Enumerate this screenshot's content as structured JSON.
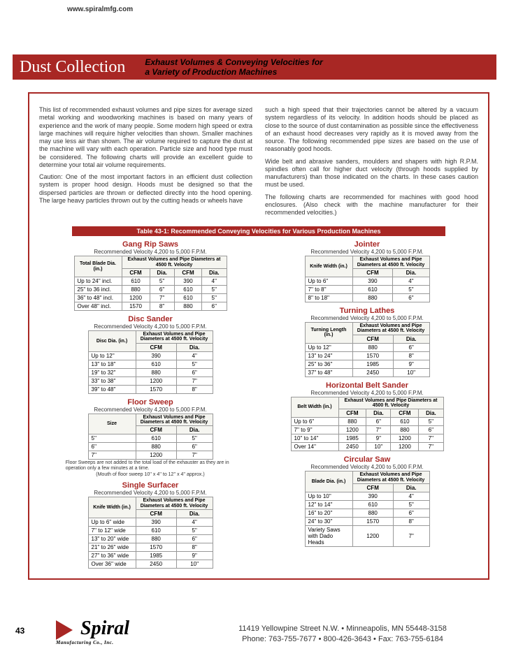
{
  "url": "www.spiralmfg.com",
  "title_main": "Dust Collection",
  "title_sub": "Exhaust Volumes & Conveying Velocities for\na Variety of Production Machines",
  "intro_left": [
    "This list of recommended exhaust volumes and pipe sizes for average sized metal working and woodworking machines is based on many years of experience and the work of many people. Some modern high speed or extra large machines will require higher velocities than shown. Smaller machines may use less air than shown. The air volume required to capture the dust at the machine will vary with each operation. Particle size and hood type must be considered. The following charts will provide an excellent guide to determine your total air volume requirements.",
    "Caution: One of the most important factors in an efficient dust collection system is proper hood design. Hoods must be designed so that the dispersed particles are thrown or deflected directly into the hood opening. The large heavy particles thrown out by the cutting heads or wheels have"
  ],
  "intro_right": [
    "such a high speed that their trajectories cannot be altered by a vacuum system regardless of its velocity. In addition hoods should be placed as close to the source of dust contamination as possible since the effectiveness of an exhaust hood decreases very rapidly as it is moved away from the source. The following recommended pipe sizes are based on the use of reasonably good hoods.",
    "Wide belt and abrasive sanders, moulders and shapers with high R.P.M. spindles often call for higher duct velocity (through hoods supplied by manufacturers) than those indicated on the charts. In these cases caution must be used.",
    "The following charts are recommended for machines with good hood enclosures. (Also check with the machine manufacturer for their recommended velocities.)"
  ],
  "table_title": "Table 43-1: Recommended Conveying Velocities for Various Production Machines",
  "vel_label": "Recommended Velocity 4,200 to 5,000 F.P.M.",
  "exh_hdr": "Exhaust Volumes and Pipe Diameters at 4500 ft. Velocity",
  "hdr_cfm": "CFM",
  "hdr_dia": "Dia.",
  "gang_rip": {
    "name": "Gang Rip Saws",
    "keyhdr": "Total Blade Dia. (in.)",
    "rows": [
      [
        "Up to 24'' incl.",
        "610",
        "5''",
        "390",
        "4''"
      ],
      [
        "25'' to 36 incl.",
        "880",
        "6''",
        "610",
        "5''"
      ],
      [
        "36'' to 48'' incl.",
        "1200",
        "7''",
        "610",
        "5''"
      ],
      [
        "Over 48'' incl.",
        "1570",
        "8''",
        "880",
        "6''"
      ]
    ]
  },
  "disc_sander": {
    "name": "Disc Sander",
    "keyhdr": "Disc Dia. (in.)",
    "rows": [
      [
        "Up to 12''",
        "390",
        "4''"
      ],
      [
        "13'' to 18''",
        "610",
        "5''"
      ],
      [
        "19'' to 32''",
        "880",
        "6''"
      ],
      [
        "33'' to 38''",
        "1200",
        "7''"
      ],
      [
        "39'' to 48''",
        "1570",
        "8''"
      ]
    ]
  },
  "floor_sweep": {
    "name": "Floor Sweep",
    "keyhdr": "Size",
    "rows": [
      [
        "5''",
        "610",
        "5''"
      ],
      [
        "6''",
        "880",
        "6''"
      ],
      [
        "7''",
        "1200",
        "7''"
      ]
    ],
    "note": "Floor Sweeps are not added to the total load of the exhauster as they are in operation only a few minutes at a time.",
    "note2": "(Mouth of floor sweep 10'' x 4'' to 12'' x 4'' approx.)"
  },
  "single_surfacer": {
    "name": "Single Surfacer",
    "keyhdr": "Knife Width (in.)",
    "rows": [
      [
        "Up to 6'' wide",
        "390",
        "4''"
      ],
      [
        "7'' to 12'' wide",
        "610",
        "5''"
      ],
      [
        "13'' to 20'' wide",
        "880",
        "6''"
      ],
      [
        "21'' to 26'' wide",
        "1570",
        "8''"
      ],
      [
        "27'' to 36'' wide",
        "1985",
        "9''"
      ],
      [
        "Over 36'' wide",
        "2450",
        "10''"
      ]
    ]
  },
  "jointer": {
    "name": "Jointer",
    "keyhdr": "Knife Width (in.)",
    "rows": [
      [
        "Up to 6''",
        "390",
        "4''"
      ],
      [
        "7'' to 8''",
        "610",
        "5''"
      ],
      [
        "8'' to 18''",
        "880",
        "6''"
      ]
    ]
  },
  "turning_lathes": {
    "name": "Turning Lathes",
    "keyhdr": "Turning Length (in.)",
    "rows": [
      [
        "Up to 12''",
        "880",
        "6''"
      ],
      [
        "13'' to 24''",
        "1570",
        "8''"
      ],
      [
        "25'' to 36''",
        "1985",
        "9''"
      ],
      [
        "37'' to 48''",
        "2450",
        "10''"
      ]
    ]
  },
  "hbs": {
    "name": "Horizontal Belt Sander",
    "keyhdr": "Belt Width (in.)",
    "rows": [
      [
        "Up to 6''",
        "880",
        "6''",
        "610",
        "5''"
      ],
      [
        "7'' to 9''",
        "1200",
        "7''",
        "880",
        "6''"
      ],
      [
        "10'' to 14''",
        "1985",
        "9''",
        "1200",
        "7''"
      ],
      [
        "Over 14''",
        "2450",
        "10''",
        "1200",
        "7''"
      ]
    ]
  },
  "circular_saw": {
    "name": "Circular Saw",
    "keyhdr": "Blade Dia. (in.)",
    "rows": [
      [
        "Up to 10''",
        "390",
        "4''"
      ],
      [
        "12'' to 14''",
        "610",
        "5''"
      ],
      [
        "16'' to 20''",
        "880",
        "6''"
      ],
      [
        "24'' to 30''",
        "1570",
        "8''"
      ],
      [
        "Variety Saws with Dado Heads",
        "1200",
        "7''"
      ]
    ]
  },
  "page_num": "43",
  "logo": "Spiral",
  "logo_sub": "Manufacturing Co., Inc.",
  "addr1": "11419 Yellowpine Street N.W. • Minneapolis, MN 55448-3158",
  "addr2": "Phone: 763-755-7677 • 800-426-3643 • Fax: 763-755-6184"
}
